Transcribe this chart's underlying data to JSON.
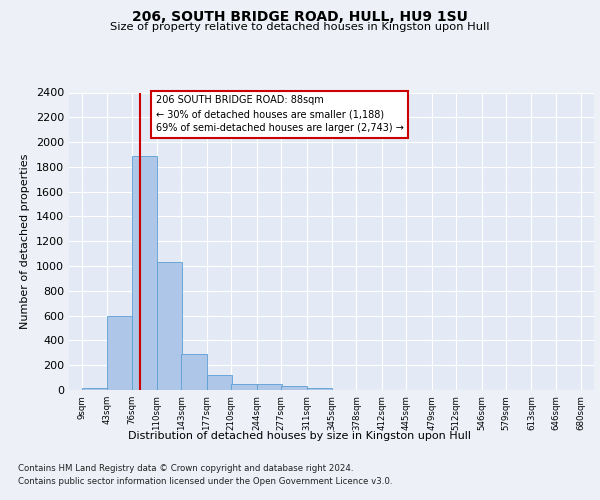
{
  "title1": "206, SOUTH BRIDGE ROAD, HULL, HU9 1SU",
  "title2": "Size of property relative to detached houses in Kingston upon Hull",
  "xlabel": "Distribution of detached houses by size in Kingston upon Hull",
  "ylabel": "Number of detached properties",
  "footnote1": "Contains HM Land Registry data © Crown copyright and database right 2024.",
  "footnote2": "Contains public sector information licensed under the Open Government Licence v3.0.",
  "bar_edges": [
    9,
    43,
    76,
    110,
    143,
    177,
    210,
    244,
    277,
    311,
    345,
    378,
    412,
    445,
    479,
    512,
    546,
    579,
    613,
    646,
    680
  ],
  "bar_heights": [
    20,
    600,
    1890,
    1030,
    290,
    120,
    50,
    45,
    30,
    20,
    0,
    0,
    0,
    0,
    0,
    0,
    0,
    0,
    0,
    0
  ],
  "bar_color": "#aec6e8",
  "bar_edgecolor": "#5a9fd4",
  "property_sqm": 88,
  "annotation_title": "206 SOUTH BRIDGE ROAD: 88sqm",
  "annotation_line1": "← 30% of detached houses are smaller (1,188)",
  "annotation_line2": "69% of semi-detached houses are larger (2,743) →",
  "vline_color": "#cc0000",
  "annotation_box_edgecolor": "#cc0000",
  "ylim": [
    0,
    2400
  ],
  "yticks": [
    0,
    200,
    400,
    600,
    800,
    1000,
    1200,
    1400,
    1600,
    1800,
    2000,
    2200,
    2400
  ],
  "background_color": "#edf1f7",
  "plot_background": "#e4eaf5"
}
